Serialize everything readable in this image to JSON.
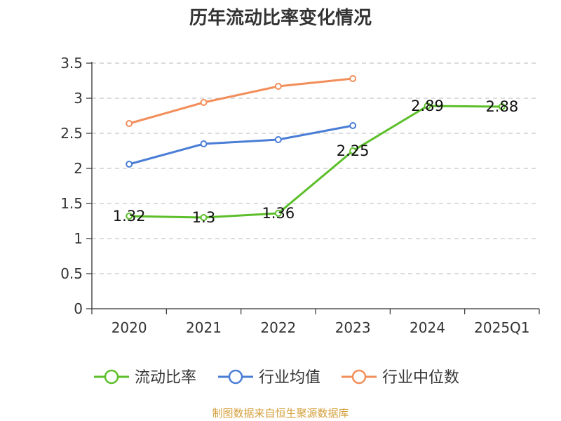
{
  "chart_data": {
    "type": "line",
    "title": "历年流动比率变化情况",
    "categories": [
      "2020",
      "2021",
      "2022",
      "2023",
      "2024",
      "2025Q1"
    ],
    "ylim": [
      0,
      3.5
    ],
    "yticks": [
      "0",
      "0.5",
      "1",
      "1.5",
      "2",
      "2.5",
      "3",
      "3.5"
    ],
    "grid": true,
    "legend_position": "bottom",
    "series": [
      {
        "name": "流动比率",
        "color": "#5cbf2a",
        "values": [
          1.32,
          1.3,
          1.36,
          2.25,
          2.89,
          2.88
        ],
        "labels": [
          "1.32",
          "1.3",
          "1.36",
          "2.25",
          "2.89",
          "2.88"
        ],
        "show_labels": true
      },
      {
        "name": "行业均值",
        "color": "#4a7ed6",
        "values": [
          2.06,
          2.35,
          2.41,
          2.61,
          null,
          null
        ],
        "show_labels": false
      },
      {
        "name": "行业中位数",
        "color": "#f28e5a",
        "values": [
          2.64,
          2.94,
          3.17,
          3.28,
          null,
          null
        ],
        "show_labels": false
      }
    ]
  },
  "source_text": "制图数据来自恒生聚源数据库"
}
